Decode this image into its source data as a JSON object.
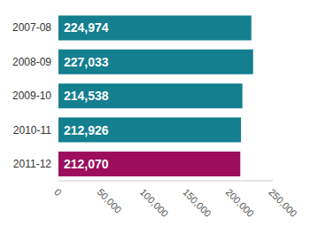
{
  "chart_data": {
    "type": "bar",
    "orientation": "horizontal",
    "categories": [
      "2007-08",
      "2008-09",
      "2009-10",
      "2010-11",
      "2011-12"
    ],
    "values": [
      224974,
      227033,
      214538,
      212926,
      212070
    ],
    "value_labels": [
      "224,974",
      "227,033",
      "214,538",
      "212,926",
      "212,070"
    ],
    "data_labels": true,
    "colors": [
      "#137f8f",
      "#137f8f",
      "#137f8f",
      "#137f8f",
      "#9c0d5d"
    ],
    "xlim": [
      0,
      250000
    ],
    "xticks": [
      0,
      {
        "value": 50000,
        "label": "50,000"
      },
      {
        "value": 100000,
        "label": "100,000"
      },
      {
        "value": 150000,
        "label": "150,000"
      },
      {
        "value": 200000,
        "label": "200,000"
      },
      {
        "value": 250000,
        "label": "250,000"
      }
    ],
    "grid": false
  }
}
